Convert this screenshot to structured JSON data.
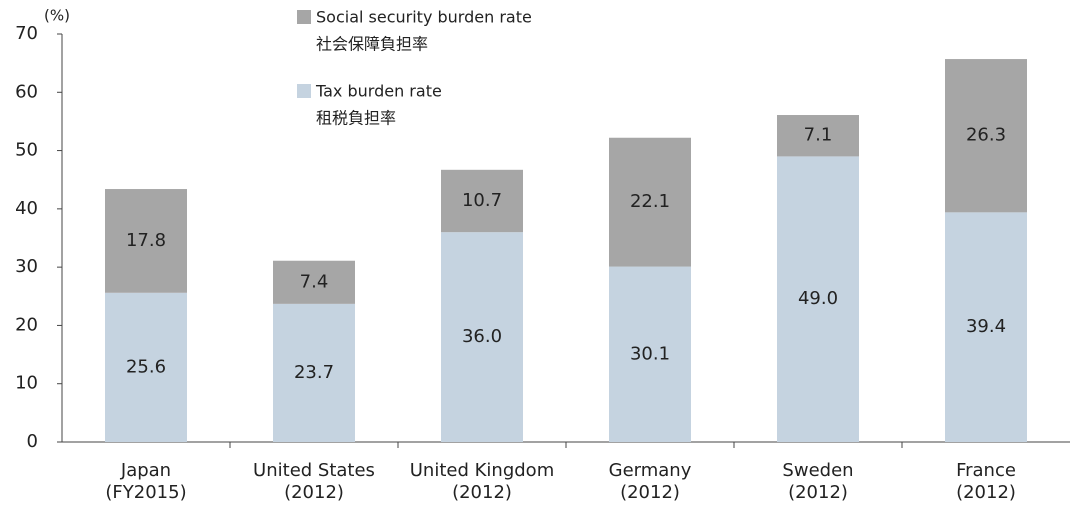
{
  "chart_data": {
    "type": "stacked_bar",
    "y_label": "(%)",
    "categories": [
      "Japan\n(FY2015)",
      "United States\n(2012)",
      "United Kingdom\n(2012)",
      "Germany\n(2012)",
      "Sweden\n(2012)",
      "France\n(2012)"
    ],
    "series": [
      {
        "name": "Tax burden rate",
        "name_local": "租税負担率",
        "color": "#c5d3e0",
        "values": [
          25.6,
          23.7,
          36.0,
          30.1,
          49.0,
          39.4
        ],
        "value_labels": [
          "25.6",
          "23.7",
          "36.0",
          "30.1",
          "49.0",
          "39.4"
        ]
      },
      {
        "name": "Social security burden rate",
        "name_local": "社会保障負担率",
        "color": "#a6a6a6",
        "values": [
          17.8,
          7.4,
          10.7,
          22.1,
          7.1,
          26.3
        ]
      }
    ],
    "ylim": [
      0,
      70
    ],
    "yticks": [
      0,
      10,
      20,
      30,
      40,
      50,
      60,
      70
    ],
    "grid": false
  }
}
